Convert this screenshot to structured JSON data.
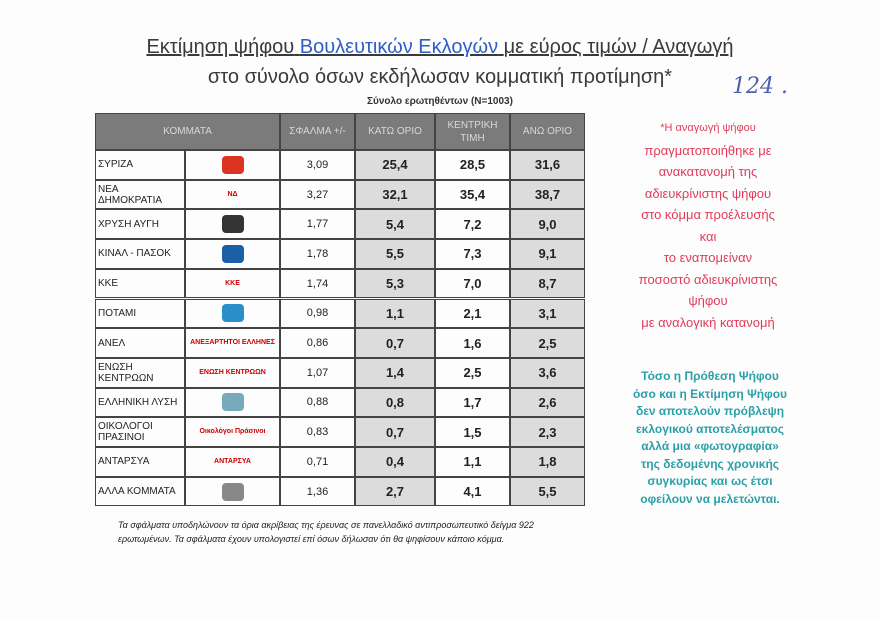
{
  "header": {
    "title_parts": [
      "Εκτίμηση ψήφου",
      "Βουλευτικών Εκλογών",
      "με εύρος τιμών / Αναγωγή"
    ],
    "title_line2": "στο σύνολο όσων εκδήλωσαν κομματική προτίμηση*",
    "handwritten": "124 .",
    "subtitle": "Σύνολο ερωτηθέντων (Ν=1003)"
  },
  "table": {
    "columns": [
      "ΚΟΜΜΑΤΑ",
      "ΣΦΑΛΜΑ +/-",
      "ΚΑΤΩ ΟΡΙΟ",
      "ΚΕΝΤΡΙΚΗ ΤΙΜΗ",
      "ΑΝΩ ΟΡΙΟ"
    ],
    "rows": [
      {
        "name": "ΣΥΡΙΖΑ",
        "values": [
          "3,09",
          "25,4",
          "28,5",
          "31,6"
        ]
      },
      {
        "name": "ΝΕΑ ΔΗΜΟΚΡΑΤΙΑ",
        "logo": "ΝΔ",
        "values": [
          "3,27",
          "32,1",
          "35,4",
          "38,7"
        ]
      },
      {
        "name": "ΧΡΥΣΗ ΑΥΓΗ",
        "values": [
          "1,77",
          "5,4",
          "7,2",
          "9,0"
        ]
      },
      {
        "name": "ΚΙΝΑΛ - ΠΑΣΟΚ",
        "values": [
          "1,78",
          "5,5",
          "7,3",
          "9,1"
        ]
      },
      {
        "name": "ΚΚΕ",
        "logo": "ΚΚΕ",
        "values": [
          "1,74",
          "5,3",
          "7,0",
          "8,7"
        ]
      },
      {
        "name": "ΠΟΤΑΜΙ",
        "values": [
          "0,98",
          "1,1",
          "2,1",
          "3,1"
        ]
      },
      {
        "name": "ΑΝΕΛ",
        "logo": "ΑΝΕΞΑΡΤΗΤΟΙ ΕΛΛΗΝΕΣ",
        "values": [
          "0,86",
          "0,7",
          "1,6",
          "2,5"
        ]
      },
      {
        "name": "ΕΝΩΣΗ ΚΕΝΤΡΩΩΝ",
        "logo": "ΕΝΩΣΗ ΚΕΝΤΡΩΩΝ",
        "values": [
          "1,07",
          "1,4",
          "2,5",
          "3,6"
        ]
      },
      {
        "name": "ΕΛΛΗΝΙΚΗ ΛΥΣΗ",
        "values": [
          "0,88",
          "0,8",
          "1,7",
          "2,6"
        ]
      },
      {
        "name": "ΟΙΚΟΛΟΓΟΙ ΠΡΑΣΙΝΟΙ",
        "logo": "Οικολόγοι Πράσινοι",
        "values": [
          "0,83",
          "0,7",
          "1,5",
          "2,3"
        ]
      },
      {
        "name": "ΑΝΤΑΡΣΥΑ",
        "logo": "ΑΝΤΑΡΣΥΑ",
        "values": [
          "0,71",
          "0,4",
          "1,1",
          "1,8"
        ]
      },
      {
        "name": "ΑΛΛΑ ΚΟΜΜΑΤΑ",
        "values": [
          "1,36",
          "2,7",
          "4,1",
          "5,5"
        ]
      }
    ]
  },
  "note": {
    "lines": [
      "*Η αναγωγή ψήφου",
      "πραγματοποιήθηκε με",
      "ανακατανομή της",
      "αδιευκρίνιστης ψήφου",
      "στο κόμμα προέλευσής",
      "και",
      "το εναπομείναν",
      "ποσοστό αδιευκρίνιστης",
      "ψήφου",
      "με αναλογική κατανομή"
    ]
  },
  "disclaimer": {
    "lines": [
      "Τόσο η Πρόθεση Ψήφου",
      "όσο και η Εκτίμηση Ψήφου",
      "δεν αποτελούν πρόβλεψη",
      "εκλογικού αποτελέσματος",
      "αλλά μια «φωτογραφία»",
      "της δεδομένης χρονικής",
      "συγκυρίας και ως έτσι",
      "οφείλουν να μελετώνται."
    ]
  },
  "footnote": {
    "lines": [
      "Τα σφάλματα υποδηλώνουν τα όρια ακρίβειας της έρευνας σε πανελλαδικό αντιπροσωπευτικό δείγμα 922",
      "ερωτωμένων. Τα σφάλματα έχουν υπολογιστεί επί όσων δήλωσαν ότι θα ψηφίσουν κάποιο κόμμα."
    ]
  }
}
